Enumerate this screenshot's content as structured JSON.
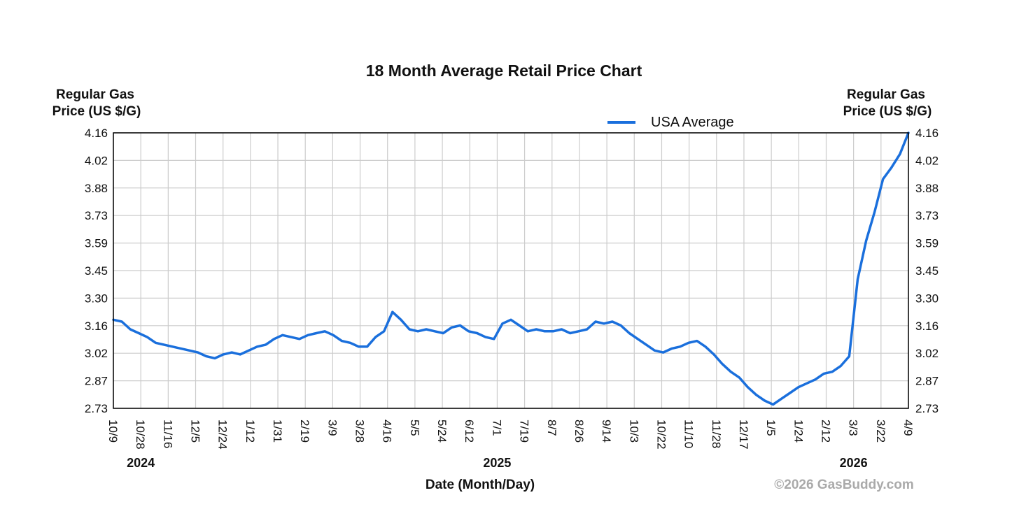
{
  "chart_data": {
    "type": "line",
    "title": "18 Month Average Retail Price Chart",
    "ylabel_left": [
      "Regular Gas",
      "Price (US $/G)"
    ],
    "ylabel_right": [
      "Regular Gas",
      "Price (US $/G)"
    ],
    "xlabel": "Date (Month/Day)",
    "ylim": [
      2.73,
      4.16
    ],
    "y_ticks": [
      "4.16",
      "4.02",
      "3.88",
      "3.73",
      "3.59",
      "3.45",
      "3.30",
      "3.16",
      "3.02",
      "2.87",
      "2.73"
    ],
    "x_ticks": [
      "10/9",
      "10/28",
      "11/16",
      "12/5",
      "12/24",
      "1/12",
      "1/31",
      "2/19",
      "3/9",
      "3/28",
      "4/16",
      "5/5",
      "5/24",
      "6/12",
      "7/1",
      "7/19",
      "8/7",
      "8/26",
      "9/14",
      "10/3",
      "10/22",
      "11/10",
      "11/28",
      "12/17",
      "1/5",
      "1/24",
      "2/12",
      "3/3",
      "3/22",
      "4/9"
    ],
    "year_labels": [
      {
        "label": "2024",
        "tick_index": 1
      },
      {
        "label": "2025",
        "tick_index": 14
      },
      {
        "label": "2026",
        "tick_index": 27
      }
    ],
    "grid": true,
    "legend": "top-center",
    "series": [
      {
        "name": "USA Average",
        "color": "#1a6fdc",
        "values": [
          3.19,
          3.18,
          3.14,
          3.12,
          3.1,
          3.07,
          3.06,
          3.05,
          3.04,
          3.03,
          3.02,
          3.0,
          2.99,
          3.01,
          3.02,
          3.01,
          3.03,
          3.05,
          3.06,
          3.09,
          3.11,
          3.1,
          3.09,
          3.11,
          3.12,
          3.13,
          3.11,
          3.08,
          3.07,
          3.05,
          3.05,
          3.1,
          3.13,
          3.23,
          3.19,
          3.14,
          3.13,
          3.14,
          3.13,
          3.12,
          3.15,
          3.16,
          3.13,
          3.12,
          3.1,
          3.09,
          3.17,
          3.19,
          3.16,
          3.13,
          3.14,
          3.13,
          3.13,
          3.14,
          3.12,
          3.13,
          3.14,
          3.18,
          3.17,
          3.18,
          3.16,
          3.12,
          3.09,
          3.06,
          3.03,
          3.02,
          3.04,
          3.05,
          3.07,
          3.08,
          3.05,
          3.01,
          2.96,
          2.92,
          2.89,
          2.84,
          2.8,
          2.77,
          2.75,
          2.78,
          2.81,
          2.84,
          2.86,
          2.88,
          2.91,
          2.92,
          2.95,
          3.0,
          3.4,
          3.6,
          3.75,
          3.92,
          3.98,
          4.05,
          4.16
        ]
      }
    ]
  },
  "copyright": "©2026 GasBuddy.com"
}
